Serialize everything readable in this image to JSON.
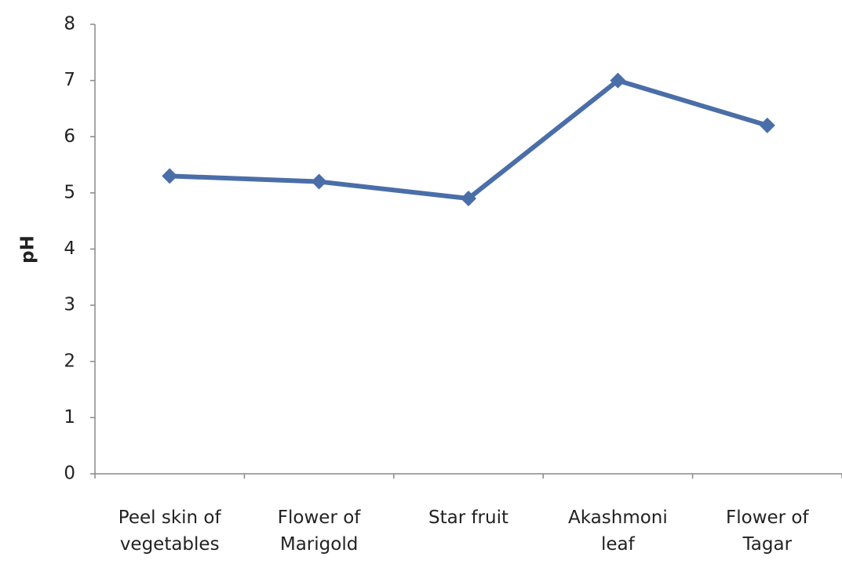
{
  "chart_data": {
    "type": "line",
    "y_label": "pH",
    "categories": [
      "Peel skin of vegetables",
      "Flower of Marigold",
      "Star fruit",
      "Akashmoni leaf",
      "Flower of Tagar"
    ],
    "values": [
      5.3,
      5.2,
      4.9,
      7.0,
      6.2
    ],
    "color": "#4a6ea8",
    "ylim": [
      0,
      8
    ],
    "yticks": [
      0,
      1,
      2,
      3,
      4,
      5,
      6,
      7,
      8
    ]
  }
}
